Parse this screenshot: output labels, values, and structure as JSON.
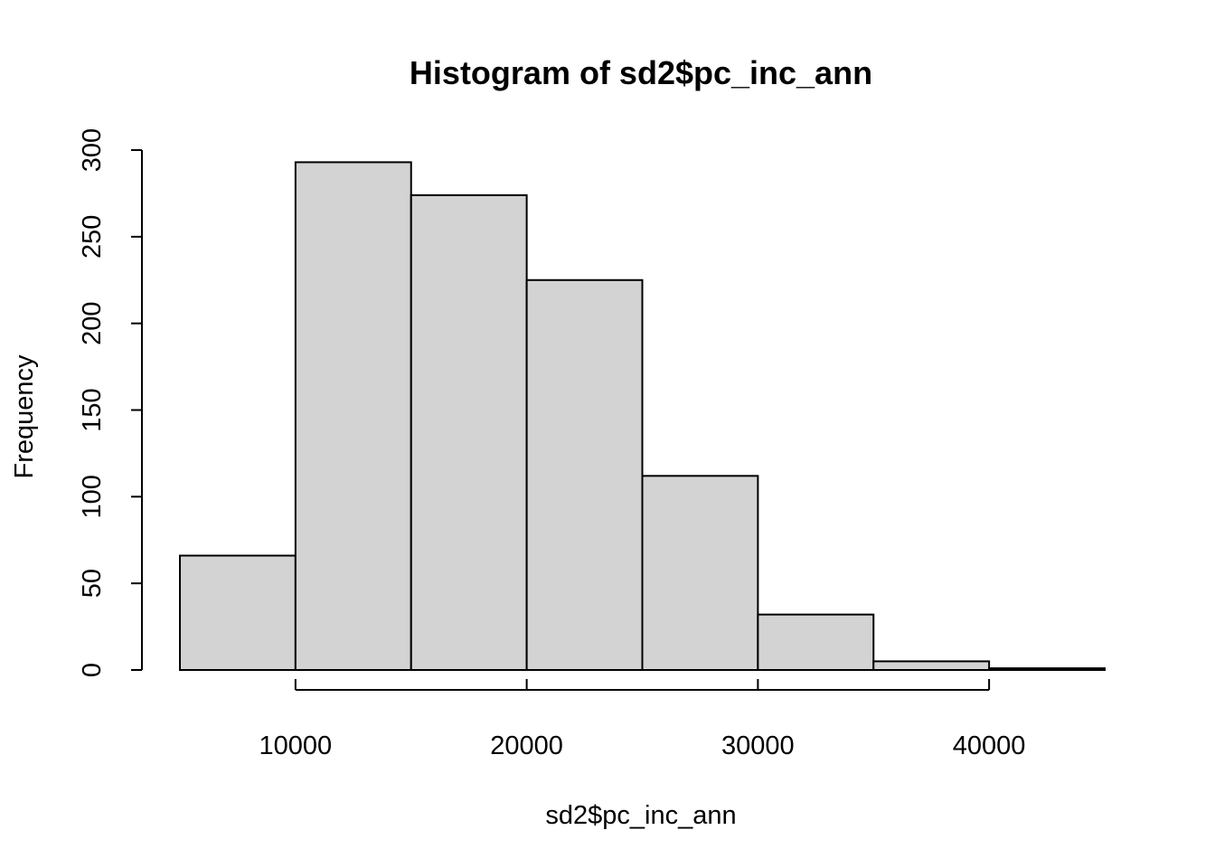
{
  "chart_data": {
    "type": "bar",
    "title": "Histogram of sd2$pc_inc_ann",
    "xlabel": "sd2$pc_inc_ann",
    "ylabel": "Frequency",
    "bins": [
      {
        "start": 5000,
        "end": 10000,
        "value": 66
      },
      {
        "start": 10000,
        "end": 15000,
        "value": 293
      },
      {
        "start": 15000,
        "end": 20000,
        "value": 274
      },
      {
        "start": 20000,
        "end": 25000,
        "value": 225
      },
      {
        "start": 25000,
        "end": 30000,
        "value": 112
      },
      {
        "start": 30000,
        "end": 35000,
        "value": 32
      },
      {
        "start": 35000,
        "end": 40000,
        "value": 5
      },
      {
        "start": 40000,
        "end": 45000,
        "value": 1
      }
    ],
    "xlim": [
      5000,
      45000
    ],
    "ylim": [
      0,
      300
    ],
    "xticks": [
      10000,
      20000,
      30000,
      40000
    ],
    "xtick_labels": [
      "10000",
      "20000",
      "30000",
      "40000"
    ],
    "yticks": [
      0,
      50,
      100,
      150,
      200,
      250,
      300
    ],
    "ytick_labels": [
      "0",
      "50",
      "100",
      "150",
      "200",
      "250",
      "300"
    ],
    "grid": false,
    "legend": "none",
    "bar_color": "#d3d3d3",
    "edge_color": "#000000"
  }
}
